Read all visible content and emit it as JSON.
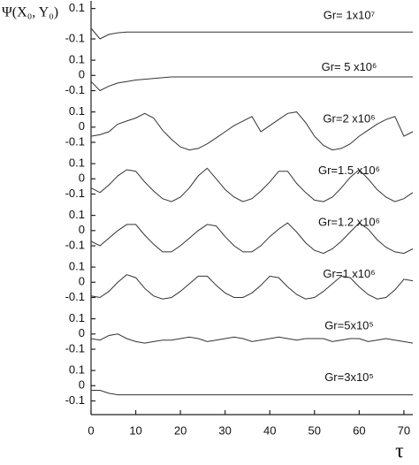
{
  "chart_data": {
    "type": "line",
    "ylabel": "Ψ(X₀, Y₀)",
    "xlabel": "τ",
    "color": "#333333",
    "x": [
      0,
      2,
      4,
      6,
      8,
      10,
      12,
      14,
      16,
      18,
      20,
      22,
      24,
      26,
      28,
      30,
      32,
      34,
      36,
      38,
      40,
      42,
      44,
      46,
      48,
      50,
      52,
      54,
      56,
      58,
      60,
      62,
      64,
      66,
      68,
      70,
      72
    ],
    "xlim": [
      0,
      72
    ],
    "xticks": [
      0,
      10,
      20,
      30,
      40,
      50,
      60,
      70
    ],
    "ylim": [
      -0.19,
      0.15
    ],
    "series": [
      {
        "name": "Gr= 1x10⁷",
        "yticks": [
          0.1,
          -0.1
        ],
        "values": [
          -0.03,
          -0.1,
          -0.07,
          -0.06,
          -0.055,
          -0.055,
          -0.055,
          -0.055,
          -0.055,
          -0.055,
          -0.055,
          -0.055,
          -0.055,
          -0.055,
          -0.055,
          -0.055,
          -0.055,
          -0.055,
          -0.055,
          -0.055,
          -0.055,
          -0.055,
          -0.055,
          -0.055,
          -0.055,
          -0.055,
          -0.055,
          -0.055,
          -0.055,
          -0.055,
          -0.055,
          -0.055,
          -0.055,
          -0.055,
          -0.055,
          -0.055,
          -0.055
        ]
      },
      {
        "name": "Gr= 5 x10⁶",
        "yticks": [
          0.1,
          0,
          -0.1
        ],
        "values": [
          -0.04,
          -0.1,
          -0.07,
          -0.05,
          -0.04,
          -0.03,
          -0.025,
          -0.02,
          -0.015,
          -0.01,
          -0.01,
          -0.01,
          -0.01,
          -0.01,
          -0.01,
          -0.01,
          -0.01,
          -0.01,
          -0.01,
          -0.01,
          -0.01,
          -0.01,
          -0.01,
          -0.01,
          -0.01,
          -0.01,
          -0.01,
          -0.01,
          -0.01,
          -0.01,
          -0.01,
          -0.01,
          -0.01,
          -0.01,
          -0.01,
          -0.01,
          -0.01
        ]
      },
      {
        "name": "Gr=2 x10⁶",
        "yticks": [
          0.1,
          0,
          -0.1
        ],
        "values": [
          -0.06,
          -0.05,
          -0.03,
          0.02,
          0.04,
          0.06,
          0.09,
          0.06,
          -0.02,
          -0.08,
          -0.13,
          -0.15,
          -0.14,
          -0.11,
          -0.07,
          -0.03,
          0.01,
          0.04,
          0.07,
          -0.03,
          0.01,
          0.05,
          0.09,
          0.1,
          0.03,
          -0.06,
          -0.12,
          -0.15,
          -0.14,
          -0.11,
          -0.06,
          -0.02,
          0.02,
          0.05,
          0.07,
          -0.06,
          -0.03
        ]
      },
      {
        "name": "Gr=1.5 x10⁶",
        "yticks": [
          0.1,
          0,
          -0.1
        ],
        "values": [
          -0.06,
          -0.09,
          -0.04,
          0.02,
          0.06,
          0.05,
          -0.02,
          -0.08,
          -0.13,
          -0.15,
          -0.12,
          -0.06,
          0.02,
          0.07,
          0.0,
          -0.07,
          -0.12,
          -0.15,
          -0.13,
          -0.08,
          -0.02,
          0.05,
          0.05,
          -0.03,
          -0.09,
          -0.14,
          -0.15,
          -0.12,
          -0.06,
          0.01,
          0.06,
          0.0,
          -0.07,
          -0.12,
          -0.15,
          -0.13,
          -0.09
        ]
      },
      {
        "name": "Gr=1.2 x10⁶",
        "yticks": [
          0.1,
          0,
          -0.1
        ],
        "values": [
          -0.07,
          -0.1,
          -0.05,
          0.0,
          0.04,
          0.04,
          -0.03,
          -0.09,
          -0.14,
          -0.14,
          -0.1,
          -0.05,
          0.0,
          0.04,
          0.03,
          -0.04,
          -0.1,
          -0.14,
          -0.14,
          -0.1,
          -0.04,
          0.01,
          0.05,
          -0.01,
          -0.08,
          -0.13,
          -0.15,
          -0.12,
          -0.07,
          -0.01,
          0.05,
          0.01,
          -0.06,
          -0.11,
          -0.14,
          -0.15,
          -0.12
        ]
      },
      {
        "name": "Gr=1 x10⁶",
        "yticks": [
          0.1,
          0,
          -0.1
        ],
        "values": [
          -0.09,
          -0.1,
          -0.06,
          0.0,
          0.05,
          0.03,
          -0.04,
          -0.09,
          -0.11,
          -0.1,
          -0.06,
          -0.01,
          0.04,
          0.04,
          -0.02,
          -0.07,
          -0.1,
          -0.1,
          -0.07,
          -0.02,
          0.04,
          0.03,
          -0.03,
          -0.08,
          -0.11,
          -0.1,
          -0.06,
          -0.01,
          0.04,
          0.03,
          -0.03,
          -0.08,
          -0.11,
          -0.1,
          -0.05,
          0.02,
          0.01
        ]
      },
      {
        "name": "Gr=5x10⁵",
        "yticks": [
          0.1,
          0,
          -0.1
        ],
        "values": [
          -0.03,
          -0.04,
          -0.01,
          0.0,
          -0.03,
          -0.05,
          -0.06,
          -0.05,
          -0.04,
          -0.04,
          -0.03,
          -0.02,
          -0.03,
          -0.05,
          -0.04,
          -0.03,
          -0.02,
          -0.03,
          -0.05,
          -0.04,
          -0.03,
          -0.02,
          -0.03,
          -0.04,
          -0.03,
          -0.03,
          -0.03,
          -0.05,
          -0.04,
          -0.03,
          -0.03,
          -0.05,
          -0.04,
          -0.03,
          -0.04,
          -0.05,
          -0.06
        ]
      },
      {
        "name": "Gr=3x10⁵",
        "yticks": [
          0.1,
          0,
          -0.1
        ],
        "values": [
          -0.03,
          -0.03,
          -0.05,
          -0.06,
          -0.06,
          -0.06,
          -0.06,
          -0.06,
          -0.06,
          -0.06,
          -0.06,
          -0.06,
          -0.06,
          -0.06,
          -0.06,
          -0.06,
          -0.06,
          -0.06,
          -0.06,
          -0.06,
          -0.06,
          -0.06,
          -0.06,
          -0.06,
          -0.06,
          -0.06,
          -0.06,
          -0.06,
          -0.06,
          -0.06,
          -0.06,
          -0.06,
          -0.06,
          -0.06,
          -0.06,
          -0.06,
          -0.06
        ]
      }
    ]
  }
}
